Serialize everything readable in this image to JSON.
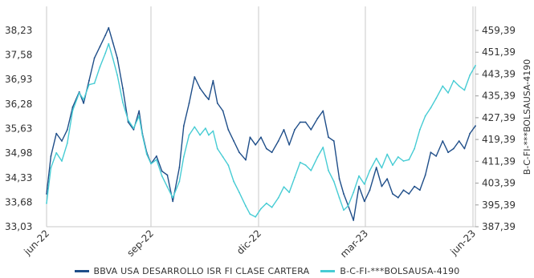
{
  "colors": {
    "primary": "#1f4e89",
    "secondary": "#47ccd4",
    "grid": "#c8c8c8"
  },
  "chart_data": {
    "type": "line",
    "x_ticks": [
      "jun-22",
      "sep-22",
      "dic-22",
      "mar-23",
      "jun-23"
    ],
    "y_left": {
      "ticks": [
        "38,23",
        "37,58",
        "36,93",
        "36,28",
        "35,63",
        "34,98",
        "34,33",
        "33,68",
        "33,03"
      ],
      "range": [
        33.03,
        38.23
      ]
    },
    "y_right": {
      "ticks": [
        "459,39",
        "451,39",
        "443,39",
        "435,39",
        "427,39",
        "419,39",
        "411,39",
        "403,39",
        "395,39",
        "387,39"
      ],
      "range": [
        387.39,
        459.39
      ],
      "label": "B-C-FI-***BOLSAUSA-4190"
    },
    "series": [
      {
        "name": "BBVA USA DESARROLLO ISR FI CLASE CARTERA",
        "color": "#1f4e89",
        "axis": "left",
        "points": [
          [
            "2022-06-01",
            33.9
          ],
          [
            "2022-06-05",
            34.9
          ],
          [
            "2022-06-10",
            35.5
          ],
          [
            "2022-06-15",
            35.3
          ],
          [
            "2022-06-20",
            35.6
          ],
          [
            "2022-06-25",
            36.2
          ],
          [
            "2022-07-01",
            36.6
          ],
          [
            "2022-07-05",
            36.3
          ],
          [
            "2022-07-10",
            36.9
          ],
          [
            "2022-07-15",
            37.5
          ],
          [
            "2022-07-20",
            37.8
          ],
          [
            "2022-07-25",
            38.1
          ],
          [
            "2022-07-28",
            38.3
          ],
          [
            "2022-08-01",
            37.9
          ],
          [
            "2022-08-05",
            37.5
          ],
          [
            "2022-08-10",
            36.7
          ],
          [
            "2022-08-15",
            35.8
          ],
          [
            "2022-08-20",
            35.6
          ],
          [
            "2022-08-25",
            36.1
          ],
          [
            "2022-08-28",
            35.5
          ],
          [
            "2022-09-01",
            35.0
          ],
          [
            "2022-09-05",
            34.7
          ],
          [
            "2022-09-10",
            34.9
          ],
          [
            "2022-09-15",
            34.5
          ],
          [
            "2022-09-20",
            34.4
          ],
          [
            "2022-09-25",
            33.7
          ],
          [
            "2022-10-01",
            34.6
          ],
          [
            "2022-10-05",
            35.7
          ],
          [
            "2022-10-10",
            36.3
          ],
          [
            "2022-10-15",
            37.0
          ],
          [
            "2022-10-20",
            36.7
          ],
          [
            "2022-10-25",
            36.5
          ],
          [
            "2022-10-28",
            36.4
          ],
          [
            "2022-11-01",
            36.9
          ],
          [
            "2022-11-05",
            36.3
          ],
          [
            "2022-11-10",
            36.1
          ],
          [
            "2022-11-15",
            35.6
          ],
          [
            "2022-11-20",
            35.3
          ],
          [
            "2022-11-25",
            35.0
          ],
          [
            "2022-12-01",
            34.8
          ],
          [
            "2022-12-05",
            35.4
          ],
          [
            "2022-12-10",
            35.2
          ],
          [
            "2022-12-15",
            35.4
          ],
          [
            "2022-12-20",
            35.1
          ],
          [
            "2022-12-25",
            35.0
          ],
          [
            "2022-12-31",
            35.3
          ],
          [
            "2023-01-05",
            35.6
          ],
          [
            "2023-01-10",
            35.2
          ],
          [
            "2023-01-15",
            35.6
          ],
          [
            "2023-01-20",
            35.8
          ],
          [
            "2023-01-25",
            35.8
          ],
          [
            "2023-01-30",
            35.6
          ],
          [
            "2023-02-05",
            35.9
          ],
          [
            "2023-02-10",
            36.1
          ],
          [
            "2023-02-15",
            35.4
          ],
          [
            "2023-02-20",
            35.3
          ],
          [
            "2023-02-25",
            34.3
          ],
          [
            "2023-03-01",
            33.9
          ],
          [
            "2023-03-05",
            33.6
          ],
          [
            "2023-03-10",
            33.2
          ],
          [
            "2023-03-15",
            34.1
          ],
          [
            "2023-03-20",
            33.7
          ],
          [
            "2023-03-25",
            34.0
          ],
          [
            "2023-03-31",
            34.6
          ],
          [
            "2023-04-05",
            34.1
          ],
          [
            "2023-04-10",
            34.3
          ],
          [
            "2023-04-15",
            33.9
          ],
          [
            "2023-04-20",
            33.8
          ],
          [
            "2023-04-25",
            34.0
          ],
          [
            "2023-04-30",
            33.9
          ],
          [
            "2023-05-05",
            34.1
          ],
          [
            "2023-05-10",
            34.0
          ],
          [
            "2023-05-15",
            34.4
          ],
          [
            "2023-05-20",
            35.0
          ],
          [
            "2023-05-25",
            34.9
          ],
          [
            "2023-05-31",
            35.3
          ],
          [
            "2023-06-05",
            35.0
          ],
          [
            "2023-06-10",
            35.1
          ],
          [
            "2023-06-15",
            35.3
          ],
          [
            "2023-06-20",
            35.1
          ],
          [
            "2023-06-25",
            35.5
          ],
          [
            "2023-06-30",
            35.7
          ]
        ]
      },
      {
        "name": "B-C-FI-***BOLSAUSA-4190",
        "color": "#47ccd4",
        "axis": "right",
        "points": [
          [
            "2022-06-01",
            396.0
          ],
          [
            "2022-06-05",
            409.0
          ],
          [
            "2022-06-10",
            414.5
          ],
          [
            "2022-06-15",
            411.5
          ],
          [
            "2022-06-20",
            418.0
          ],
          [
            "2022-06-25",
            430.0
          ],
          [
            "2022-07-01",
            436.5
          ],
          [
            "2022-07-05",
            434.0
          ],
          [
            "2022-07-10",
            439.5
          ],
          [
            "2022-07-15",
            440.0
          ],
          [
            "2022-07-20",
            446.0
          ],
          [
            "2022-07-25",
            451.0
          ],
          [
            "2022-07-28",
            454.5
          ],
          [
            "2022-08-01",
            449.0
          ],
          [
            "2022-08-05",
            443.0
          ],
          [
            "2022-08-10",
            433.0
          ],
          [
            "2022-08-15",
            426.5
          ],
          [
            "2022-08-20",
            423.5
          ],
          [
            "2022-08-25",
            428.0
          ],
          [
            "2022-08-28",
            421.0
          ],
          [
            "2022-09-01",
            414.0
          ],
          [
            "2022-09-05",
            410.5
          ],
          [
            "2022-09-10",
            412.0
          ],
          [
            "2022-09-15",
            406.0
          ],
          [
            "2022-09-20",
            402.0
          ],
          [
            "2022-09-25",
            398.0
          ],
          [
            "2022-10-01",
            404.0
          ],
          [
            "2022-10-05",
            413.0
          ],
          [
            "2022-10-10",
            421.0
          ],
          [
            "2022-10-15",
            424.0
          ],
          [
            "2022-10-20",
            421.0
          ],
          [
            "2022-10-25",
            423.5
          ],
          [
            "2022-10-28",
            421.0
          ],
          [
            "2022-11-01",
            422.5
          ],
          [
            "2022-11-05",
            416.0
          ],
          [
            "2022-11-10",
            413.0
          ],
          [
            "2022-11-15",
            410.0
          ],
          [
            "2022-11-20",
            404.0
          ],
          [
            "2022-11-25",
            400.0
          ],
          [
            "2022-12-01",
            395.0
          ],
          [
            "2022-12-05",
            392.0
          ],
          [
            "2022-12-10",
            391.0
          ],
          [
            "2022-12-15",
            394.0
          ],
          [
            "2022-12-20",
            396.0
          ],
          [
            "2022-12-25",
            394.5
          ],
          [
            "2022-12-31",
            398.0
          ],
          [
            "2023-01-05",
            402.0
          ],
          [
            "2023-01-10",
            400.0
          ],
          [
            "2023-01-15",
            405.5
          ],
          [
            "2023-01-20",
            411.0
          ],
          [
            "2023-01-25",
            410.0
          ],
          [
            "2023-01-30",
            408.0
          ],
          [
            "2023-02-05",
            413.0
          ],
          [
            "2023-02-10",
            416.5
          ],
          [
            "2023-02-15",
            408.0
          ],
          [
            "2023-02-20",
            404.0
          ],
          [
            "2023-02-25",
            398.0
          ],
          [
            "2023-03-01",
            393.5
          ],
          [
            "2023-03-05",
            395.0
          ],
          [
            "2023-03-10",
            400.0
          ],
          [
            "2023-03-15",
            406.0
          ],
          [
            "2023-03-20",
            403.0
          ],
          [
            "2023-03-25",
            408.0
          ],
          [
            "2023-03-31",
            412.5
          ],
          [
            "2023-04-05",
            409.0
          ],
          [
            "2023-04-10",
            414.0
          ],
          [
            "2023-04-15",
            410.0
          ],
          [
            "2023-04-20",
            413.0
          ],
          [
            "2023-04-25",
            411.5
          ],
          [
            "2023-04-30",
            412.0
          ],
          [
            "2023-05-05",
            416.0
          ],
          [
            "2023-05-10",
            423.0
          ],
          [
            "2023-05-15",
            428.0
          ],
          [
            "2023-05-20",
            431.0
          ],
          [
            "2023-05-25",
            434.5
          ],
          [
            "2023-05-31",
            439.0
          ],
          [
            "2023-06-05",
            436.5
          ],
          [
            "2023-06-10",
            441.0
          ],
          [
            "2023-06-15",
            439.0
          ],
          [
            "2023-06-20",
            437.5
          ],
          [
            "2023-06-25",
            443.0
          ],
          [
            "2023-06-30",
            446.5
          ]
        ]
      }
    ],
    "x_range": [
      "2022-06-01",
      "2023-06-30"
    ],
    "legend": "bottom"
  }
}
